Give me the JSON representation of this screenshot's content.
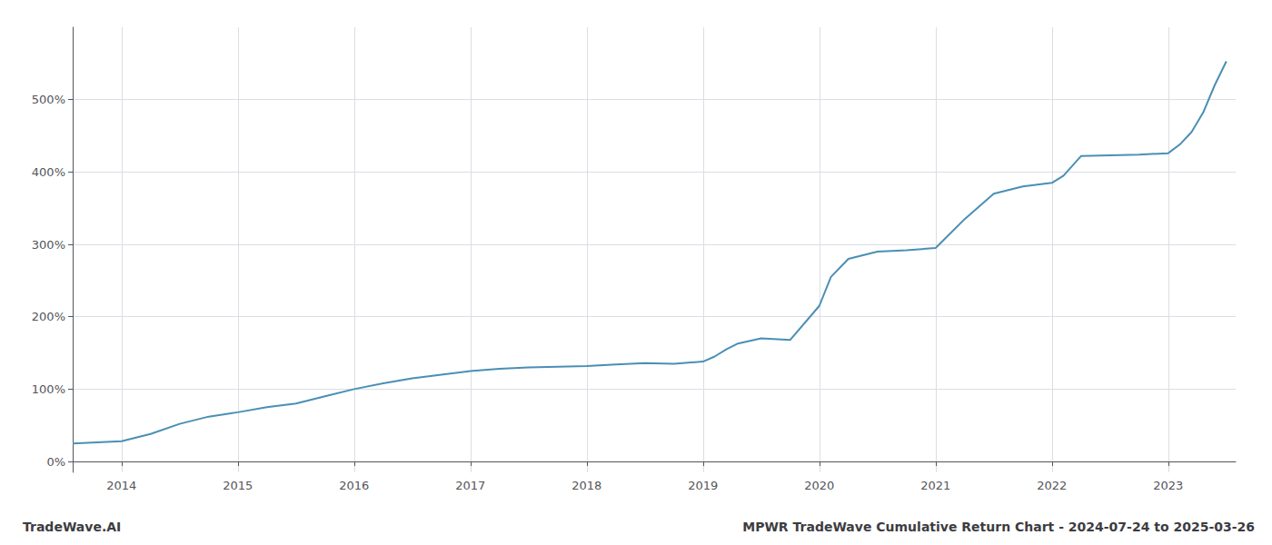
{
  "chart_data": {
    "type": "line",
    "title": "MPWR TradeWave Cumulative Return Chart - 2024-07-24 to 2025-03-26",
    "annotations": [
      "TradeWave.AI"
    ],
    "x": [
      2013.58,
      2014.0,
      2014.25,
      2014.5,
      2014.75,
      2015.0,
      2015.25,
      2015.5,
      2015.75,
      2016.0,
      2016.25,
      2016.5,
      2016.75,
      2017.0,
      2017.25,
      2017.5,
      2017.75,
      2018.0,
      2018.25,
      2018.5,
      2018.75,
      2019.0,
      2019.1,
      2019.2,
      2019.3,
      2019.5,
      2019.75,
      2020.0,
      2020.1,
      2020.25,
      2020.5,
      2020.75,
      2021.0,
      2021.25,
      2021.5,
      2021.75,
      2022.0,
      2022.1,
      2022.25,
      2022.5,
      2022.75,
      2023.0,
      2023.1,
      2023.2,
      2023.3,
      2023.4,
      2023.5
    ],
    "values": [
      25,
      28,
      38,
      52,
      62,
      68,
      75,
      80,
      90,
      100,
      108,
      115,
      120,
      125,
      128,
      130,
      131,
      132,
      134,
      136,
      135,
      138,
      145,
      155,
      163,
      170,
      168,
      215,
      255,
      280,
      290,
      292,
      295,
      335,
      370,
      380,
      385,
      395,
      422,
      423,
      424,
      426,
      438,
      455,
      482,
      520,
      553
    ],
    "color": "#4a8fb5",
    "xlim": [
      2013.58,
      2023.58
    ],
    "xticks": [
      2014,
      2015,
      2016,
      2017,
      2018,
      2019,
      2020,
      2021,
      2022,
      2023
    ],
    "ylim": [
      -15,
      600
    ],
    "yticks": [
      {
        "value": 0,
        "label": "0%"
      },
      {
        "value": 100,
        "label": "100%"
      },
      {
        "value": 200,
        "label": "200%"
      },
      {
        "value": 300,
        "label": "300%"
      },
      {
        "value": 400,
        "label": "400%"
      },
      {
        "value": 500,
        "label": "500%"
      }
    ],
    "grid": true
  }
}
